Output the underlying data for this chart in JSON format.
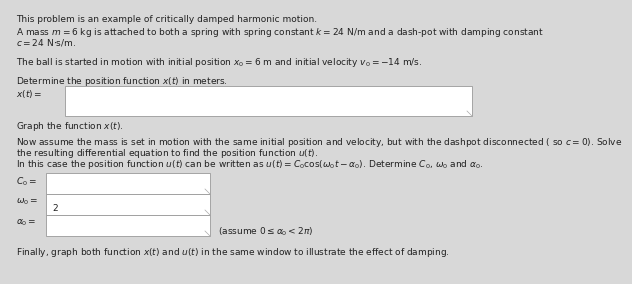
{
  "bg_color": "#d8d8d8",
  "text_color": "#222222",
  "box_color": "#ffffff",
  "box_border_color": "#999999",
  "line1": "This problem is an example of critically damped harmonic motion.",
  "line2": "A mass $m = 6$ kg is attached to both a spring with spring constant $k = 24$ N/m and a dash-pot with damping constant",
  "line3": "$c = 24$ N$\\cdot$s/m.",
  "line4": "The ball is started in motion with initial position $x_0 = 6$ m and initial velocity $v_0 = -14$ m/s.",
  "line5": "Determine the position function $x(t)$ in meters.",
  "line6": "$x(t) =$",
  "line7": "Graph the function $x(t)$.",
  "line8": "Now assume the mass is set in motion with the same initial position and velocity, but with the dashpot disconnected ( so $c = 0$). Solve",
  "line9": "the resulting differential equation to find the position function $u(t)$.",
  "line10": "In this case the position function $u(t)$ can be written as $u(t) = C_0\\cos(\\omega_0 t - \\alpha_0)$. Determine $C_0$, $\\omega_0$ and $\\alpha_0$.",
  "line11": "$C_0 =$",
  "line12a": "$\\omega_0 =$",
  "line12b": "2",
  "line13": "$\\alpha_0 =$",
  "line14": "(assume $0 \\leq \\alpha_0 < 2\\pi$)",
  "line15": "Finally, graph both function $x(t)$ and $u(t)$ in the same window to illustrate the effect of damping.",
  "fs": 6.5
}
